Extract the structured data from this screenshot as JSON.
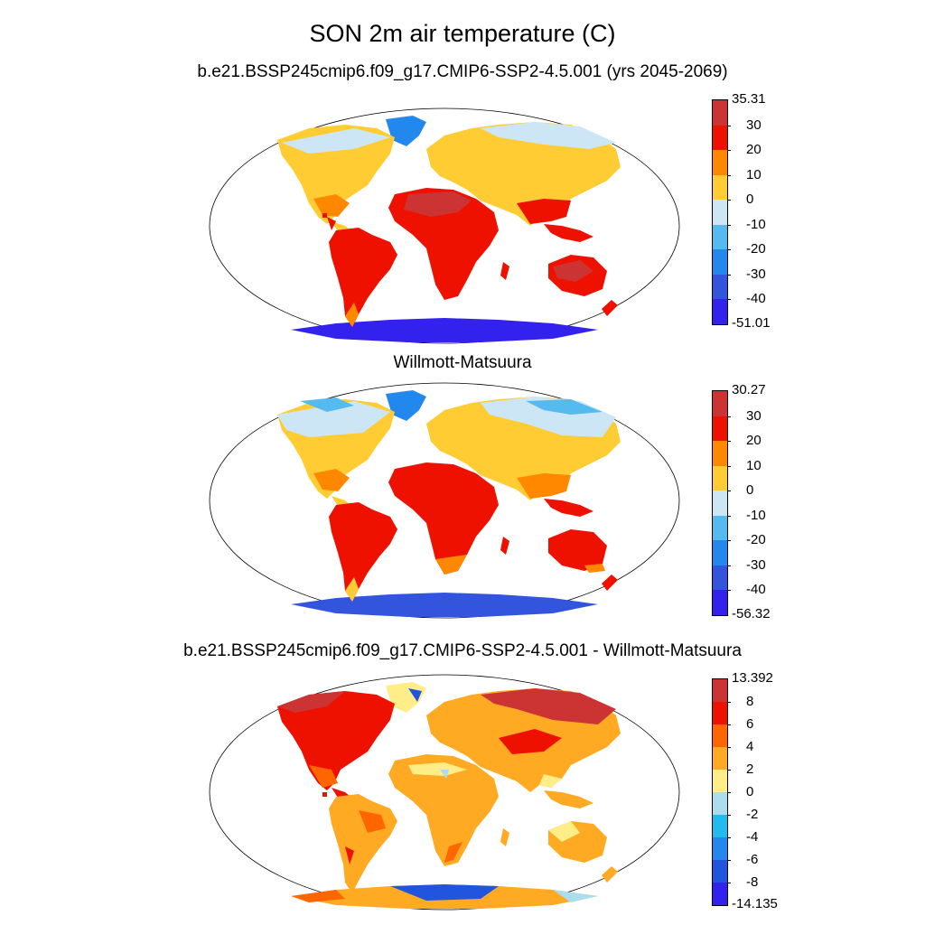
{
  "figure": {
    "title": "SON 2m air temperature (C)"
  },
  "panels": [
    {
      "id": "model",
      "title": "b.e21.BSSP245cmip6.f09_g17.CMIP6-SSP2-4.5.001 (yrs 2045-2069)",
      "colorbar": {
        "max_label": "35.31",
        "min_label": "-51.01",
        "levels": [
          "30",
          "20",
          "10",
          "0",
          "-10",
          "-20",
          "-30",
          "-40"
        ],
        "colors": [
          "#cc3333",
          "#ee1100",
          "#ff8800",
          "#ffcc33",
          "#cce6f5",
          "#55bbee",
          "#2288ee",
          "#3355dd",
          "#3322ee"
        ]
      }
    },
    {
      "id": "obs",
      "title": "Willmott-Matsuura",
      "colorbar": {
        "max_label": "30.27",
        "min_label": "-56.32",
        "levels": [
          "30",
          "20",
          "10",
          "0",
          "-10",
          "-20",
          "-30",
          "-40"
        ],
        "colors": [
          "#cc3333",
          "#ee1100",
          "#ff8800",
          "#ffcc33",
          "#cce6f5",
          "#55bbee",
          "#2288ee",
          "#3355dd",
          "#3322ee"
        ]
      }
    },
    {
      "id": "diff",
      "title": "b.e21.BSSP245cmip6.f09_g17.CMIP6-SSP2-4.5.001 - Willmott-Matsuura",
      "colorbar": {
        "max_label": "13.392",
        "min_label": "-14.135",
        "levels": [
          "8",
          "6",
          "4",
          "2",
          "0",
          "-2",
          "-4",
          "-6",
          "-8"
        ],
        "colors": [
          "#cc3333",
          "#ee1100",
          "#ff6600",
          "#ffaa22",
          "#ffee88",
          "#aaddee",
          "#22bbee",
          "#2288ee",
          "#2255dd",
          "#3322ee"
        ]
      }
    }
  ]
}
